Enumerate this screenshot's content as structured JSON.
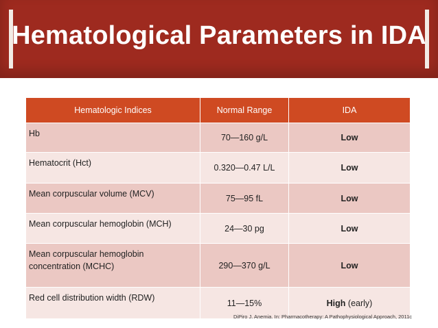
{
  "title": "Hematological Parameters in IDA",
  "table": {
    "headers": [
      "Hematologic Indices",
      "Normal Range",
      "IDA"
    ],
    "rows": [
      {
        "index": "Hb",
        "range": "70—160 g/L",
        "ida": "Low",
        "ida_note": ""
      },
      {
        "index": "Hematocrit (Hct)",
        "range": "0.320—0.47 L/L",
        "ida": "Low",
        "ida_note": ""
      },
      {
        "index": "Mean corpuscular volume (MCV)",
        "range": "75—95 fL",
        "ida": "Low",
        "ida_note": ""
      },
      {
        "index": "Mean corpuscular hemoglobin (MCH)",
        "range": "24—30 pg",
        "ida": "Low",
        "ida_note": ""
      },
      {
        "index": "Mean corpuscular hemoglobin concentration (MCHC)",
        "range": "290—370 g/L",
        "ida": "Low",
        "ida_note": ""
      },
      {
        "index": "Red cell distribution width (RDW)",
        "range": "11—15%",
        "ida": "High",
        "ida_note": " (early)"
      }
    ]
  },
  "citation": "DiPiro J. Anemia. In:  Pharmacotherapy: A Pathophysiological Approach, 2011c",
  "colors": {
    "title_background": "#9e2a1f",
    "header_background": "#cf4a22",
    "row_dark": "#ebc8c3",
    "row_light": "#f6e6e3"
  }
}
